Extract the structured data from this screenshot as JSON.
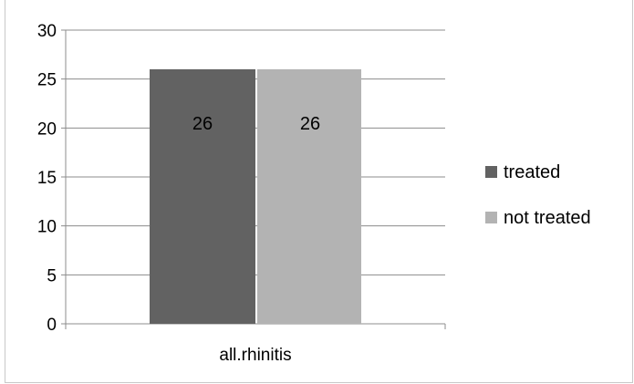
{
  "chart_data": {
    "type": "bar",
    "categories": [
      "all.rhinitis"
    ],
    "series": [
      {
        "name": "treated",
        "values": [
          26
        ],
        "color": "#626262"
      },
      {
        "name": "not treated",
        "values": [
          26
        ],
        "color": "#b3b3b3"
      }
    ],
    "data_labels": [
      "26",
      "26"
    ],
    "ylim": [
      0,
      30
    ],
    "y_ticks": [
      0,
      5,
      10,
      15,
      20,
      25,
      30
    ],
    "grid": true,
    "legend_position": "right"
  }
}
